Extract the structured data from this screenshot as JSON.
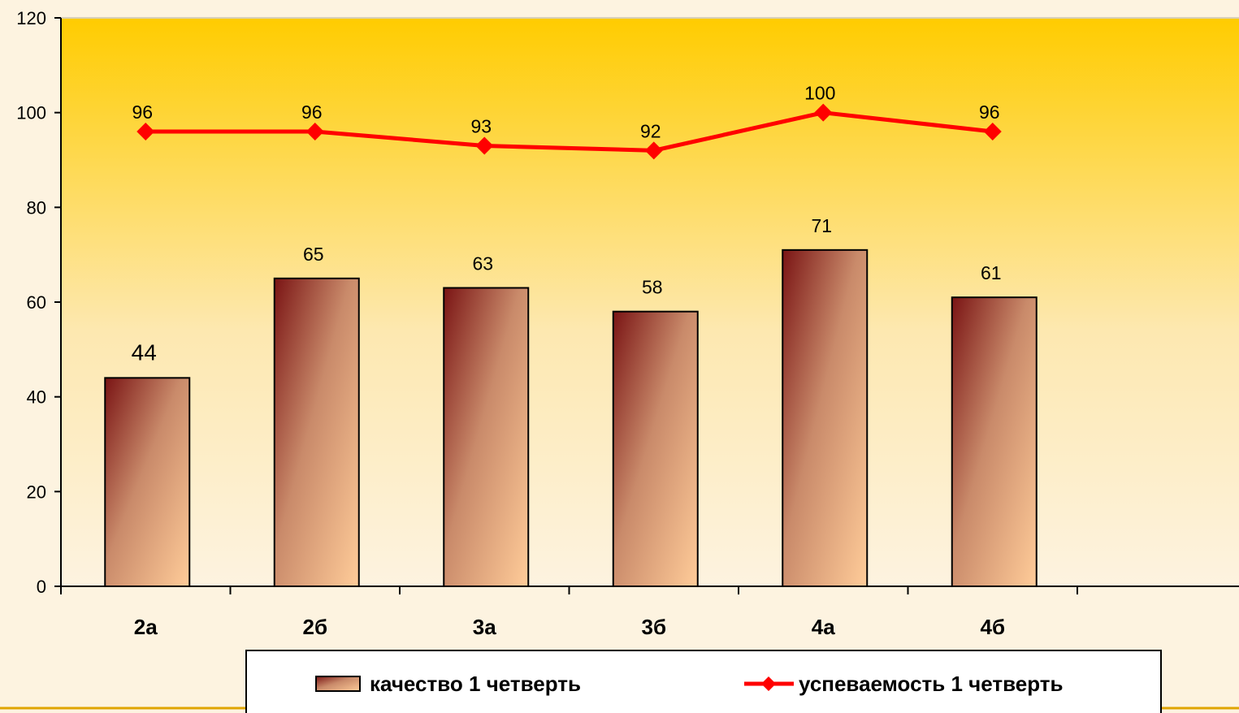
{
  "chart_data": {
    "type": "bar",
    "categories": [
      "2а",
      "2б",
      "3а",
      "3б",
      "4а",
      "4б"
    ],
    "series": [
      {
        "name": "качество 1 четверть",
        "type": "bar",
        "values": [
          44,
          65,
          63,
          58,
          71,
          61
        ]
      },
      {
        "name": "успеваемость 1 четверть",
        "type": "line",
        "values": [
          96,
          96,
          93,
          92,
          100,
          96
        ]
      }
    ],
    "ylim": [
      0,
      120
    ],
    "yticks": [
      0,
      20,
      40,
      60,
      80,
      100,
      120
    ],
    "xlabel": "",
    "ylabel": "",
    "grid": false,
    "legend": "bottom",
    "colors": {
      "bar_dark": "#7a1414",
      "bar_light": "#ffcc99",
      "line": "#ff0000",
      "plot_top": "#ffcc00",
      "plot_bottom": "#fdf3e0"
    }
  }
}
